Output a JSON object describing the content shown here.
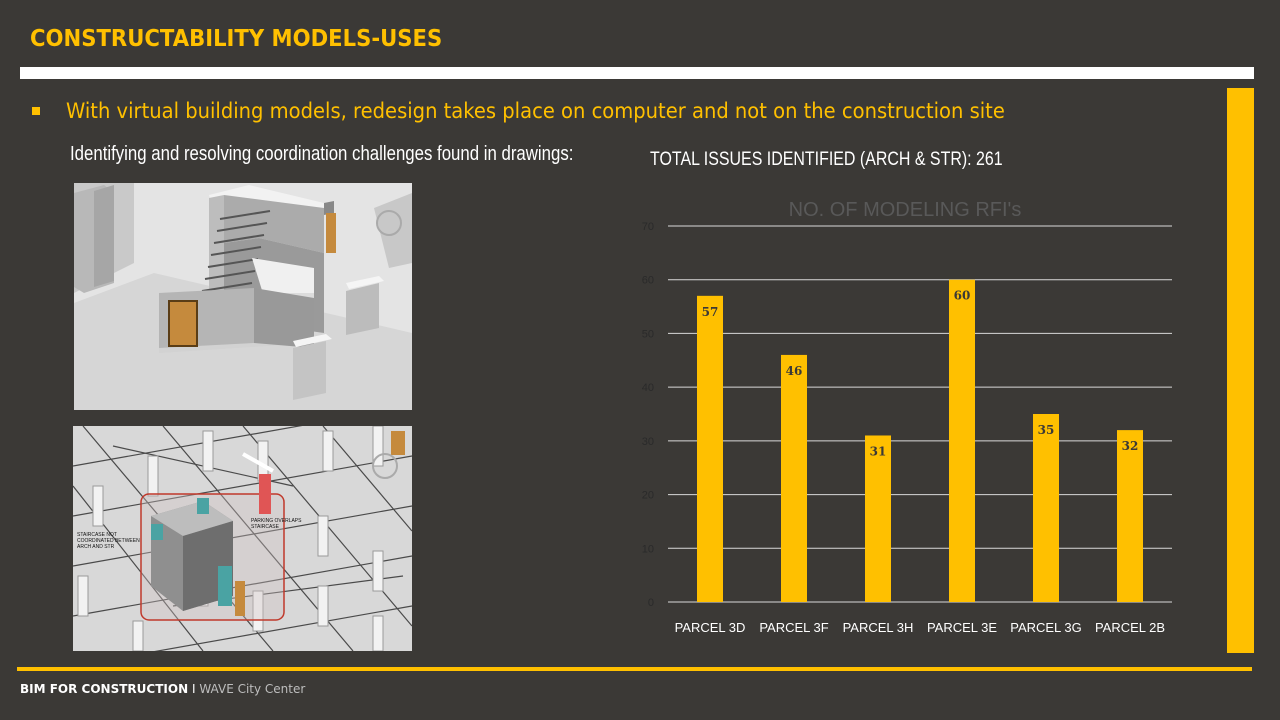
{
  "slide": {
    "title": "CONSTRUCTABILITY MODELS-USES",
    "bullet": "With virtual building models, redesign takes place on computer and not on the construction site",
    "subheading": "Identifying and resolving coordination challenges found in drawings:",
    "total_issues": "TOTAL ISSUES IDENTIFIED (ARCH & STR): 261",
    "image2_labels": {
      "left": [
        "STAIRCASE NOT",
        "COORDINATED BETWEEN",
        "ARCH AND STR"
      ],
      "right": [
        "PARKING OVERLAPS",
        "STAIRCASE"
      ]
    }
  },
  "footer": {
    "bold": "BIM FOR CONSTRUCTION",
    "separator": "I",
    "sub": "WAVE City Center"
  },
  "colors": {
    "background": "#3b3936",
    "accent": "#ffc000",
    "rule": "#ffffff"
  },
  "chart_data": {
    "type": "bar",
    "title": "NO. OF MODELING RFI's",
    "categories": [
      "PARCEL 3D",
      "PARCEL 3F",
      "PARCEL 3H",
      "PARCEL 3E",
      "PARCEL 3G",
      "PARCEL 2B"
    ],
    "values": [
      57,
      46,
      31,
      60,
      35,
      32
    ],
    "ylim": [
      0,
      70
    ],
    "yticks": [
      0,
      10,
      20,
      30,
      40,
      50,
      60,
      70
    ],
    "grid": true,
    "bar_color": "#ffc000",
    "data_labels": true
  }
}
